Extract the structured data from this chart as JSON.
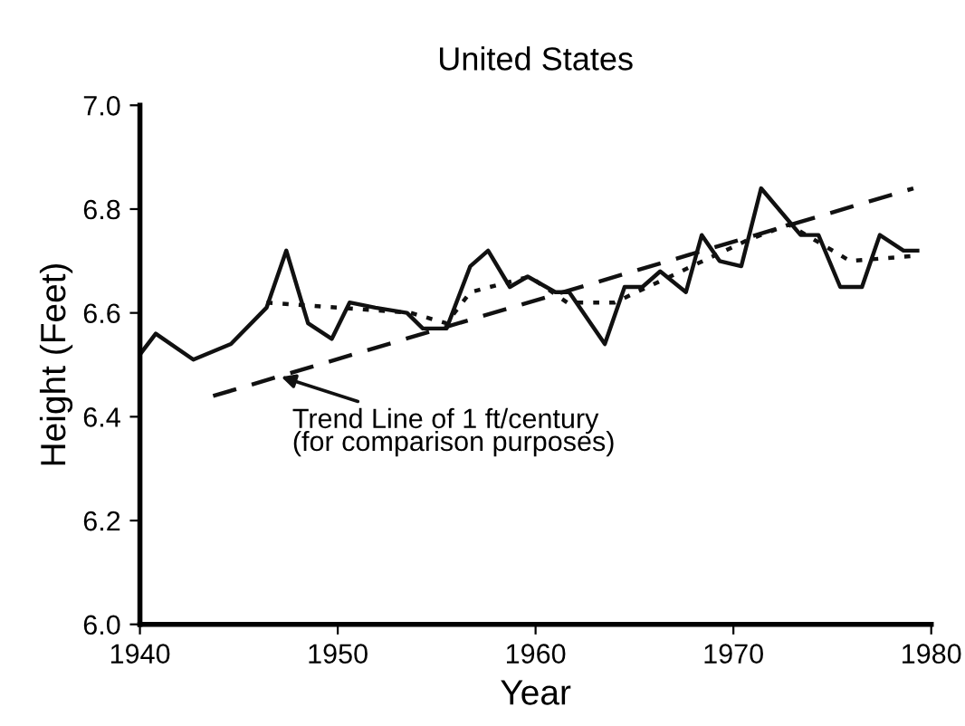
{
  "chart_data": {
    "type": "line",
    "title": "United States",
    "xlabel": "Year",
    "ylabel": "Height (Feet)",
    "xlim": [
      1940,
      1980
    ],
    "xticks": [
      1940,
      1950,
      1960,
      1970,
      1980
    ],
    "ylim": [
      6.0,
      7.0
    ],
    "yticks": [
      {
        "value": 6.0,
        "label": "6.0"
      },
      {
        "value": 6.2,
        "label": "6.2"
      },
      {
        "value": 6.4,
        "label": "6.4"
      },
      {
        "value": 6.6,
        "label": "6.6"
      },
      {
        "value": 6.8,
        "label": "6.8"
      },
      {
        "value": 7.0,
        "label": "7.0"
      }
    ],
    "grid": false,
    "marker": "none",
    "series": [
      {
        "color": "#111111",
        "line_style": "solid",
        "x": [
          1940,
          1940.8,
          1942.7,
          1944.6,
          1946.4,
          1947.4,
          1948.5,
          1949.7,
          1950.6,
          1951.9,
          1953.5,
          1954.3,
          1955.5,
          1956.7,
          1957.6,
          1958.7,
          1959.6,
          1961.0,
          1961.7,
          1963.5,
          1964.5,
          1965.4,
          1966.3,
          1967.6,
          1968.4,
          1969.3,
          1970.4,
          1971.4,
          1973.4,
          1974.3,
          1975.4,
          1976.5,
          1977.4,
          1978.6,
          1979.3
        ],
        "values": [
          6.52,
          6.56,
          6.51,
          6.54,
          6.61,
          6.72,
          6.58,
          6.55,
          6.62,
          6.61,
          6.6,
          6.57,
          6.57,
          6.69,
          6.72,
          6.65,
          6.67,
          6.64,
          6.64,
          6.54,
          6.65,
          6.65,
          6.68,
          6.64,
          6.75,
          6.7,
          6.69,
          6.84,
          6.75,
          6.75,
          6.65,
          6.65,
          6.75,
          6.72,
          6.72
        ]
      },
      {
        "color": "#111111",
        "line_style": "dotted",
        "x": [
          1946.4,
          1953.7,
          1955.5,
          1956.7,
          1959.7,
          1961.6,
          1964.0,
          1970.7,
          1972.8,
          1975.9,
          1979.2
        ],
        "values": [
          6.62,
          6.6,
          6.58,
          6.64,
          6.67,
          6.62,
          6.62,
          6.74,
          6.77,
          6.7,
          6.71
        ]
      },
      {
        "color": "#111111",
        "line_style": "dashed",
        "x": [
          1943.7,
          1979.1
        ],
        "values": [
          6.44,
          6.84
        ]
      }
    ],
    "annotations": [
      {
        "text": "Trend Line of 1 ft/century\n(for comparison purposes)",
        "x": 1946.9,
        "y": 6.48
      }
    ]
  }
}
